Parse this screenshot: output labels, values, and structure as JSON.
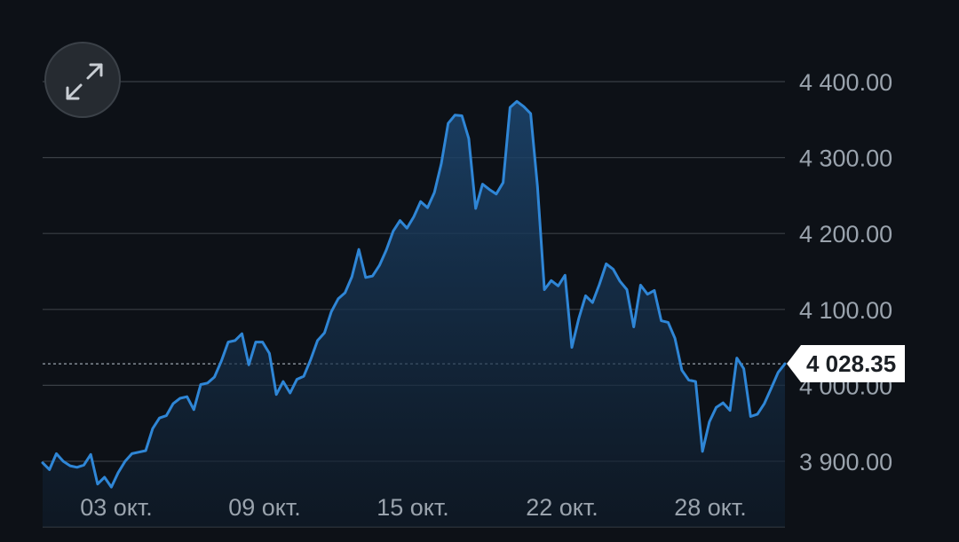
{
  "chart_data": {
    "type": "area",
    "x_labels": [
      "03 окт.",
      "09 окт.",
      "15 окт.",
      "22 окт.",
      "28 окт."
    ],
    "y_ticks": [
      "4 400.00",
      "4 300.00",
      "4 200.00",
      "4 100.00",
      "4 000.00",
      "3 900.00"
    ],
    "y_tick_values": [
      4400,
      4300,
      4200,
      4100,
      4000,
      3900
    ],
    "ylim": [
      3818,
      4452
    ],
    "current_value": 4028.35,
    "current_label": "4 028.35",
    "grid": "horizontal",
    "colors": {
      "line": "#2f86d6",
      "fill": "#1a3a5c",
      "grid": "#3a3f45",
      "background": "#0d1117",
      "current_line": "#9aa3ad"
    },
    "values": [
      3898,
      3889,
      3910,
      3900,
      3894,
      3892,
      3895,
      3909,
      3870,
      3879,
      3866,
      3885,
      3900,
      3910,
      3912,
      3914,
      3943,
      3957,
      3960,
      3976,
      3983,
      3985,
      3968,
      4001,
      4003,
      4011,
      4032,
      4057,
      4059,
      4068,
      4027,
      4057,
      4057,
      4042,
      3988,
      4005,
      3990,
      4008,
      4012,
      4034,
      4059,
      4069,
      4097,
      4114,
      4122,
      4143,
      4179,
      4142,
      4144,
      4158,
      4178,
      4203,
      4217,
      4207,
      4222,
      4242,
      4234,
      4254,
      4292,
      4345,
      4356,
      4355,
      4325,
      4233,
      4265,
      4258,
      4252,
      4267,
      4366,
      4374,
      4367,
      4358,
      4262,
      4126,
      4138,
      4131,
      4145,
      4050,
      4088,
      4118,
      4109,
      4133,
      4160,
      4153,
      4137,
      4126,
      4077,
      4132,
      4120,
      4125,
      4085,
      4083,
      4062,
      4020,
      4007,
      4005,
      3913,
      3952,
      3971,
      3977,
      3967,
      4036,
      4022,
      3959,
      3962,
      3976,
      3996,
      4017,
      4028.35
    ]
  },
  "icons": {
    "expand": "expand-diagonal-arrows-icon"
  }
}
